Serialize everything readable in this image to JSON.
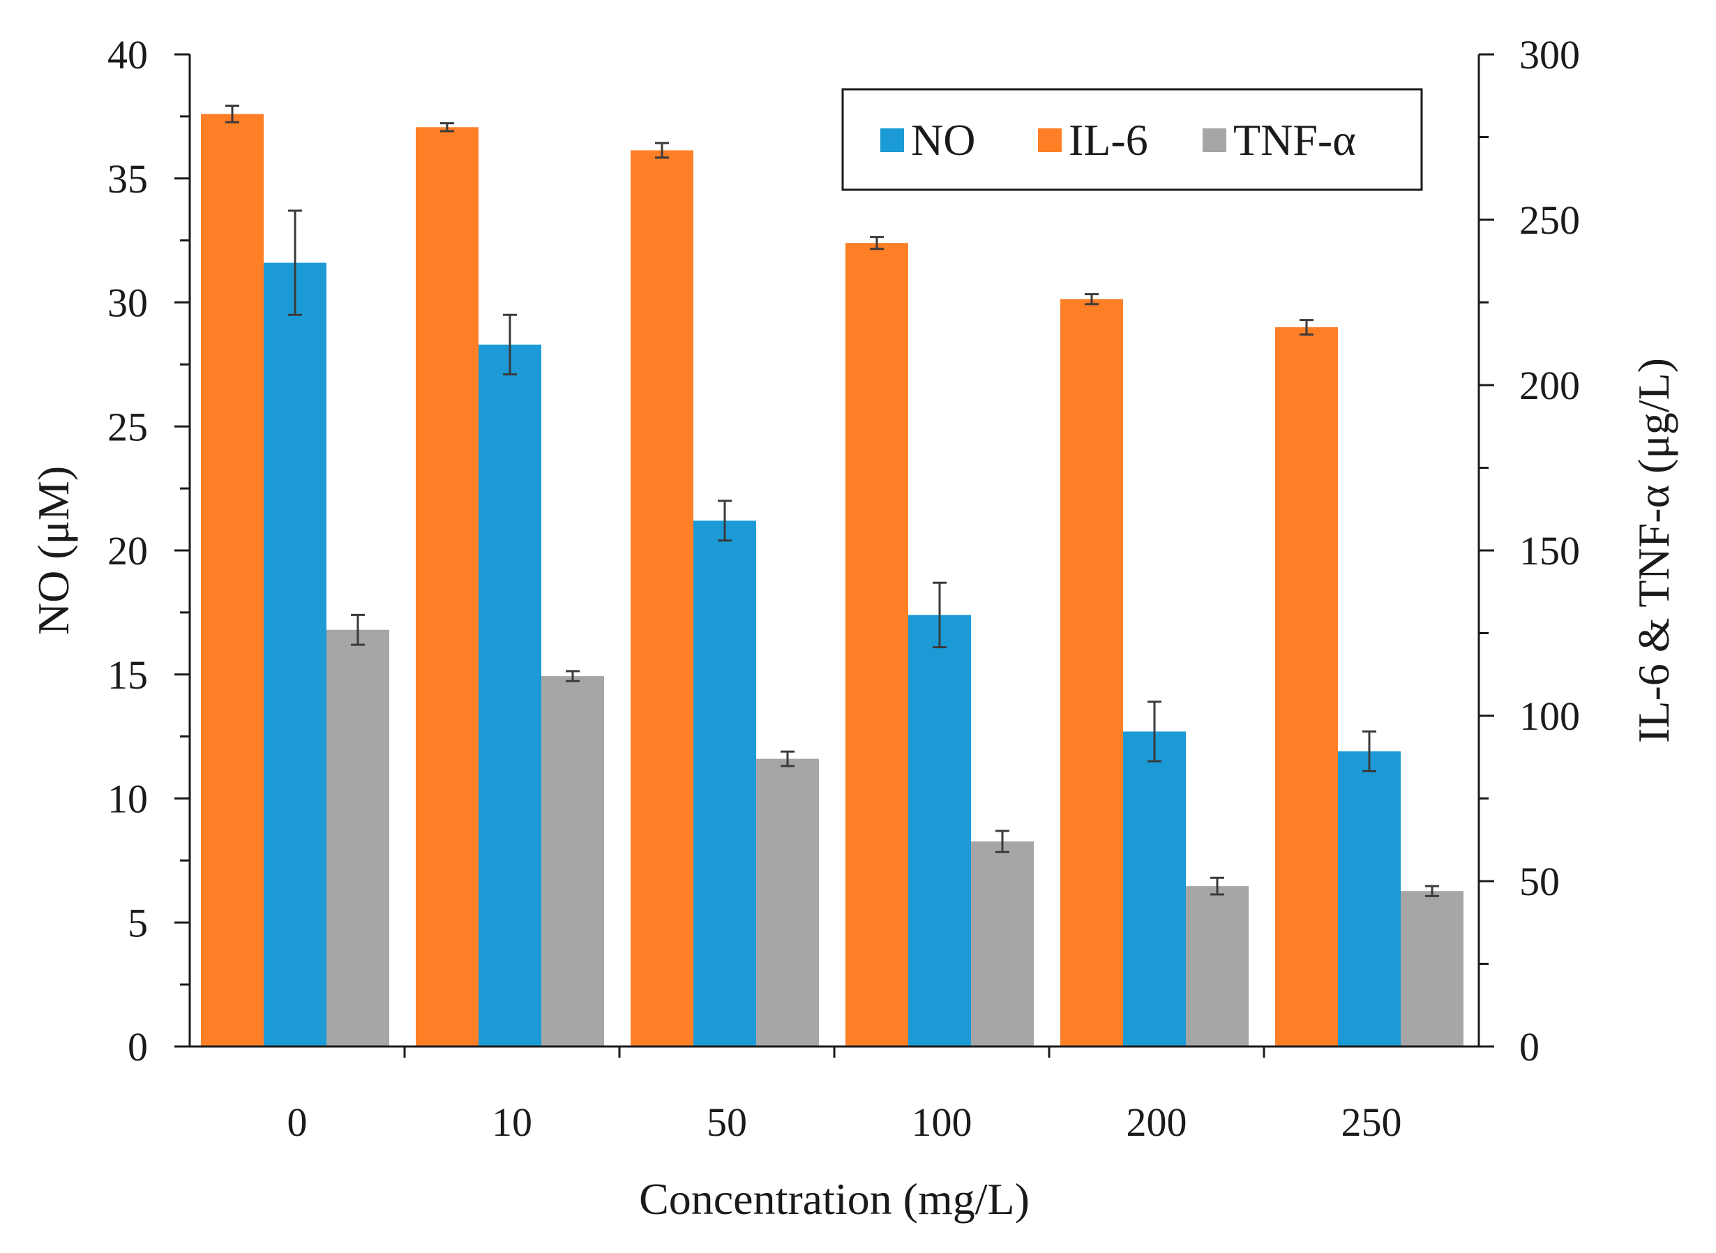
{
  "chart_data": {
    "type": "bar",
    "title": "",
    "xlabel": "Concentration  (mg/L)",
    "ylabel_left": "NO (μM)",
    "ylabel_right": "IL-6 & TNF-α (μg/L)",
    "categories": [
      "0",
      "10",
      "50",
      "100",
      "200",
      "250"
    ],
    "ylim_left": [
      0,
      40
    ],
    "yticks_left": [
      "0",
      "5",
      "10",
      "15",
      "20",
      "25",
      "30",
      "35",
      "40"
    ],
    "ylim_right": [
      0,
      300
    ],
    "yticks_right": [
      "0",
      "50",
      "100",
      "150",
      "200",
      "250",
      "300"
    ],
    "grid": false,
    "legend_position": "top-right",
    "series": [
      {
        "name": "IL-6",
        "axis": "right",
        "color": "#FF7F27",
        "values": [
          282,
          278,
          271,
          243,
          226,
          217.5
        ],
        "errors": [
          2.5,
          1.2,
          2.2,
          1.8,
          1.5,
          2.2
        ]
      },
      {
        "name": "NO",
        "axis": "left",
        "color": "#1B9AD6",
        "values": [
          31.6,
          28.3,
          21.2,
          17.4,
          12.7,
          11.9
        ],
        "errors": [
          2.1,
          1.2,
          0.8,
          1.3,
          1.2,
          0.8
        ]
      },
      {
        "name": "TNF-α",
        "axis": "right",
        "color": "#A6A6A6",
        "values": [
          126,
          112,
          87,
          62,
          48.5,
          47
        ],
        "errors": [
          4.5,
          1.5,
          2.2,
          3.2,
          2.5,
          1.5
        ]
      }
    ],
    "legend_order": [
      "NO",
      "IL-6",
      "TNF-α"
    ]
  }
}
